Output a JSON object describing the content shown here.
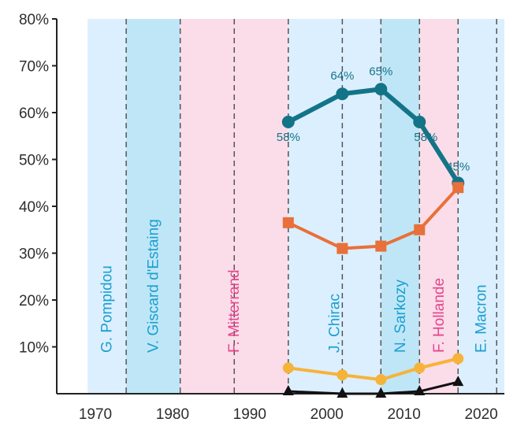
{
  "chart_data": {
    "type": "line",
    "xlim": [
      1965,
      2023
    ],
    "ylim": [
      0,
      80
    ],
    "x_ticks": [
      1970,
      1980,
      1990,
      2000,
      2010,
      2020
    ],
    "y_ticks": [
      {
        "value": 10,
        "label": "10%"
      },
      {
        "value": 20,
        "label": "20%"
      },
      {
        "value": 30,
        "label": "30%"
      },
      {
        "value": 40,
        "label": "40%"
      },
      {
        "value": 50,
        "label": "50%"
      },
      {
        "value": 60,
        "label": "60%"
      },
      {
        "value": 70,
        "label": "70%"
      },
      {
        "value": 80,
        "label": "80%"
      }
    ],
    "grid": false,
    "presidencies": [
      {
        "label": "G. Pompidou",
        "start": 1969,
        "end": 1974,
        "color": "#dcefff",
        "text_color": "#1aa0d0"
      },
      {
        "label": "V. Giscard d'Estaing",
        "start": 1974,
        "end": 1981,
        "color": "#bfe6f7",
        "text_color": "#1aa0d0"
      },
      {
        "label": "F. Mitterrand",
        "start": 1981,
        "end": 1995,
        "color": "#fbdde9",
        "text_color": "#e4468c"
      },
      {
        "label": "J. Chirac",
        "start": 1995,
        "end": 2007,
        "color": "#dcefff",
        "text_color": "#1aa0d0"
      },
      {
        "label": "N. Sarkozy",
        "start": 2007,
        "end": 2012,
        "color": "#bfe6f7",
        "text_color": "#1aa0d0"
      },
      {
        "label": "F. Hollande",
        "start": 2012,
        "end": 2017,
        "color": "#fbdde9",
        "text_color": "#e4468c"
      },
      {
        "label": "E. Macron",
        "start": 2017,
        "end": 2023,
        "color": "#dcefff",
        "text_color": "#1aa0d0"
      }
    ],
    "election_years": [
      1974,
      1981,
      1988,
      1995,
      2002,
      2007,
      2012,
      2017,
      2022
    ],
    "series": [
      {
        "color": "#137487",
        "marker": "circle",
        "x": [
          1995,
          2002,
          2007,
          2012,
          2017
        ],
        "y": [
          58,
          64,
          65,
          58,
          45
        ],
        "labels": [
          "58%",
          "64%",
          "65%",
          "58%",
          "45%"
        ]
      },
      {
        "color": "#e8703a",
        "marker": "square",
        "x": [
          1995,
          2002,
          2007,
          2012,
          2017
        ],
        "y": [
          36.5,
          31,
          31.5,
          35,
          44
        ]
      },
      {
        "color": "#f6b33a",
        "marker": "circle",
        "x": [
          1995,
          2002,
          2007,
          2012,
          2017
        ],
        "y": [
          5.5,
          4,
          3,
          5.5,
          7.5
        ]
      },
      {
        "color": "#111111",
        "marker": "triangle",
        "x": [
          1995,
          2002,
          2007,
          2012,
          2017
        ],
        "y": [
          0.5,
          0,
          0,
          0.5,
          2.5
        ]
      }
    ]
  }
}
